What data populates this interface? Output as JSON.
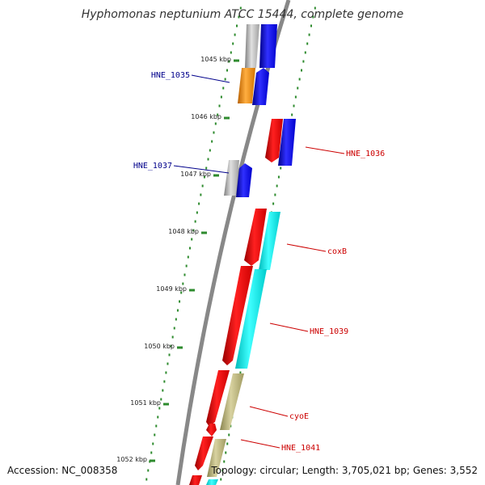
{
  "title": "Hyphomonas neptunium ATCC 15444, complete genome",
  "footer": {
    "accession": "Accession: NC_008358",
    "topology": "Topology: circular; Length: 3,705,021 bp; Genes: 3,552"
  },
  "kbp_marks": [
    "1045 kbp",
    "1046 kbp",
    "1047 kbp",
    "1048 kbp",
    "1049 kbp",
    "1050 kbp",
    "1051 kbp",
    "1052 kbp"
  ],
  "gene_labels": [
    {
      "text": "HNE_1035",
      "strand": "forward",
      "color": "#00008b"
    },
    {
      "text": "HNE_1037",
      "strand": "forward",
      "color": "#00008b"
    },
    {
      "text": "HNE_1036",
      "strand": "reverse",
      "color": "#cc0000"
    },
    {
      "text": "coxB",
      "strand": "reverse",
      "color": "#cc0000"
    },
    {
      "text": "HNE_1039",
      "strand": "reverse",
      "color": "#cc0000"
    },
    {
      "text": "cyoE",
      "strand": "reverse",
      "color": "#cc0000"
    },
    {
      "text": "HNE_1041",
      "strand": "reverse",
      "color": "#cc0000"
    }
  ],
  "colors": {
    "backbone": "#888888",
    "dots": "#2e8b2e",
    "forward_gene": "#0000ff",
    "reverse_gene": "#ff0000",
    "cds_cyan": "#00ffff",
    "cds_khaki": "#bdb76b",
    "cds_orange": "#ff8c00",
    "cds_gray": "#b0b0b0"
  }
}
